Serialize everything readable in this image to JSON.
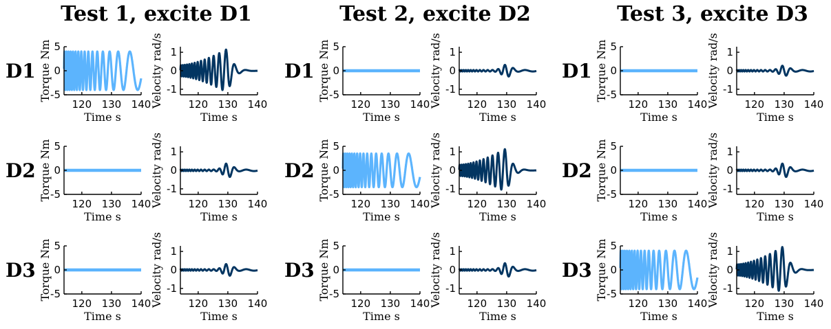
{
  "colors": {
    "torque": "#5cb4fd",
    "velocity": "#023561"
  },
  "column_titles": [
    "Test 1, excite D1",
    "Test 2, excite D2",
    "Test 3, excite D3"
  ],
  "row_labels": [
    "D1",
    "D2",
    "D3"
  ],
  "chart_data": {
    "type": "line",
    "subplot_grid": "3 rows (D1, D2, D3) x 3 tests x 2 panels (torque, velocity)",
    "torque_axes": {
      "ylabel": "Torque  Nm",
      "xlabel": "Time  s",
      "xlim": [
        114,
        140
      ],
      "ylim": [
        -5,
        5
      ],
      "xticks": [
        120,
        130,
        140
      ],
      "yticks": [
        -5,
        0,
        5
      ]
    },
    "velocity_axes": {
      "ylabel": "Velocity  rad/s",
      "xlabel": "Time  s",
      "xlim": [
        114,
        140
      ],
      "ylim": [
        -1.3,
        1.3
      ],
      "xticks": [
        120,
        130,
        140
      ],
      "yticks": [
        -1,
        0,
        1
      ]
    },
    "tests": [
      {
        "title": "Test 1, excite D1",
        "rows": [
          {
            "label": "D1",
            "torque_amplitude": 4,
            "velocity_peak": 1.2,
            "excited": true
          },
          {
            "label": "D2",
            "torque_amplitude": 0,
            "velocity_peak": 0.35,
            "excited": false
          },
          {
            "label": "D3",
            "torque_amplitude": 0,
            "velocity_peak": 0.3,
            "excited": false
          }
        ]
      },
      {
        "title": "Test 2, excite D2",
        "rows": [
          {
            "label": "D1",
            "torque_amplitude": 0,
            "velocity_peak": 0.3,
            "excited": false
          },
          {
            "label": "D2",
            "torque_amplitude": 3.5,
            "velocity_peak": 1.2,
            "excited": true
          },
          {
            "label": "D3",
            "torque_amplitude": 0,
            "velocity_peak": 0.35,
            "excited": false
          }
        ]
      },
      {
        "title": "Test 3, excite D3",
        "rows": [
          {
            "label": "D1",
            "torque_amplitude": 0,
            "velocity_peak": 0.25,
            "excited": false
          },
          {
            "label": "D2",
            "torque_amplitude": 0,
            "velocity_peak": 0.35,
            "excited": false
          },
          {
            "label": "D3",
            "torque_amplitude": 4,
            "velocity_peak": 1.3,
            "excited": true
          }
        ]
      }
    ]
  }
}
